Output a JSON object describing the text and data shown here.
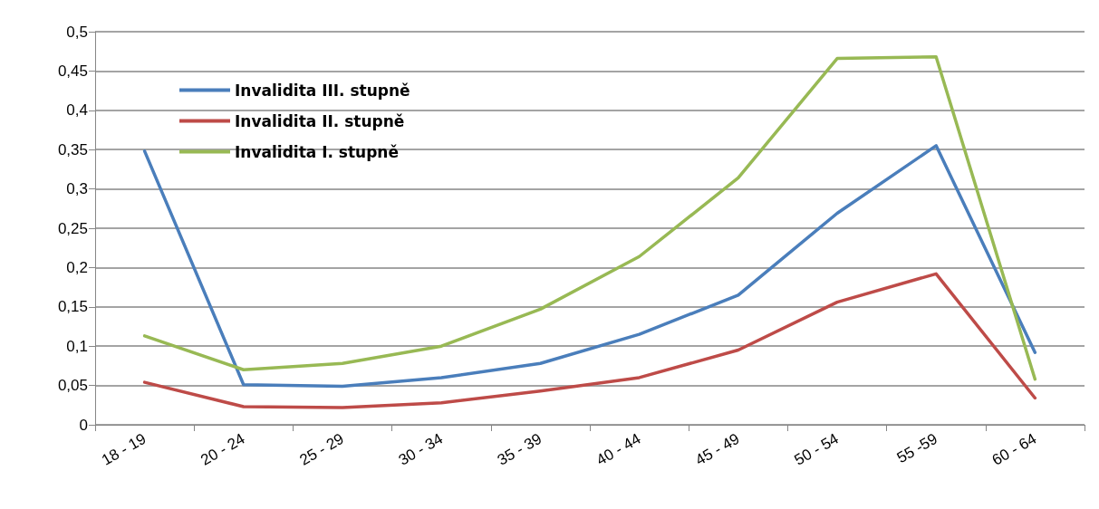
{
  "chart_data": {
    "type": "line",
    "categories": [
      "18 - 19",
      "20 - 24",
      "25 - 29",
      "30 - 34",
      "35 - 39",
      "40 - 44",
      "45 - 49",
      "50 - 54",
      "55 -59",
      "60 - 64"
    ],
    "series": [
      {
        "name": "Invalidita III. stupně",
        "color": "#4a7ebb",
        "values": [
          0.348,
          0.051,
          0.049,
          0.06,
          0.078,
          0.115,
          0.165,
          0.269,
          0.355,
          0.092
        ]
      },
      {
        "name": "Invalidita II. stupně",
        "color": "#be4b48",
        "values": [
          0.054,
          0.023,
          0.022,
          0.028,
          0.043,
          0.06,
          0.095,
          0.156,
          0.192,
          0.034
        ]
      },
      {
        "name": "Invalidita I. stupně",
        "color": "#98b954",
        "values": [
          0.113,
          0.07,
          0.078,
          0.1,
          0.147,
          0.214,
          0.314,
          0.466,
          0.468,
          0.058
        ]
      }
    ],
    "ylim": [
      0,
      0.5
    ],
    "yticks": [
      0,
      {
        "value": 0.05,
        "label": "0,05"
      },
      {
        "value": 0.1,
        "label": "0,1"
      },
      {
        "value": 0.15,
        "label": "0,15"
      },
      {
        "value": 0.2,
        "label": "0,2"
      },
      {
        "value": 0.25,
        "label": "0,25"
      },
      {
        "value": 0.3,
        "label": "0,3"
      },
      {
        "value": 0.35,
        "label": "0,35"
      },
      {
        "value": 0.4,
        "label": "0,4"
      },
      {
        "value": 0.45,
        "label": "0,45"
      },
      {
        "value": 0.5,
        "label": "0,5"
      }
    ],
    "grid": "y",
    "legend": "top left",
    "marker": "none",
    "line_style": "solid"
  }
}
